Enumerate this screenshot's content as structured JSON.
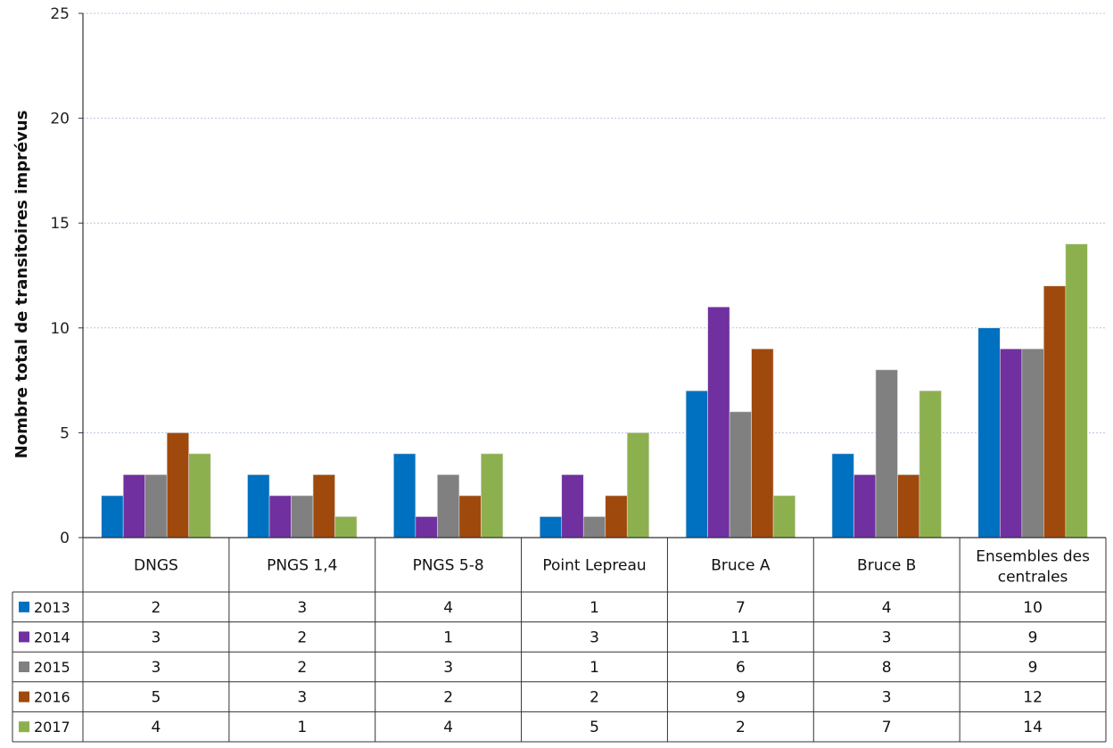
{
  "chart_data": {
    "type": "bar",
    "title": "",
    "xlabel": "",
    "ylabel": "Nombre total de transitoires imprévus",
    "ylim": [
      0,
      25
    ],
    "yticks": [
      0,
      5,
      10,
      15,
      20,
      25
    ],
    "grid": true,
    "legend": "data-table",
    "categories": [
      "DNGS",
      "PNGS 1,4",
      "PNGS 5-8",
      "Point Lepreau",
      "Bruce A",
      "Bruce B",
      "Ensembles des centrales"
    ],
    "series": [
      {
        "name": "2013",
        "color": "#0070C0",
        "values": [
          2,
          3,
          4,
          1,
          7,
          4,
          10
        ]
      },
      {
        "name": "2014",
        "color": "#7030A0",
        "values": [
          3,
          2,
          1,
          3,
          11,
          3,
          9
        ]
      },
      {
        "name": "2015",
        "color": "#808080",
        "values": [
          3,
          2,
          3,
          1,
          6,
          8,
          9
        ]
      },
      {
        "name": "2016",
        "color": "#A0490C",
        "values": [
          5,
          3,
          2,
          2,
          9,
          3,
          12
        ]
      },
      {
        "name": "2017",
        "color": "#8DB04E",
        "values": [
          4,
          1,
          4,
          5,
          2,
          7,
          14
        ]
      }
    ]
  }
}
